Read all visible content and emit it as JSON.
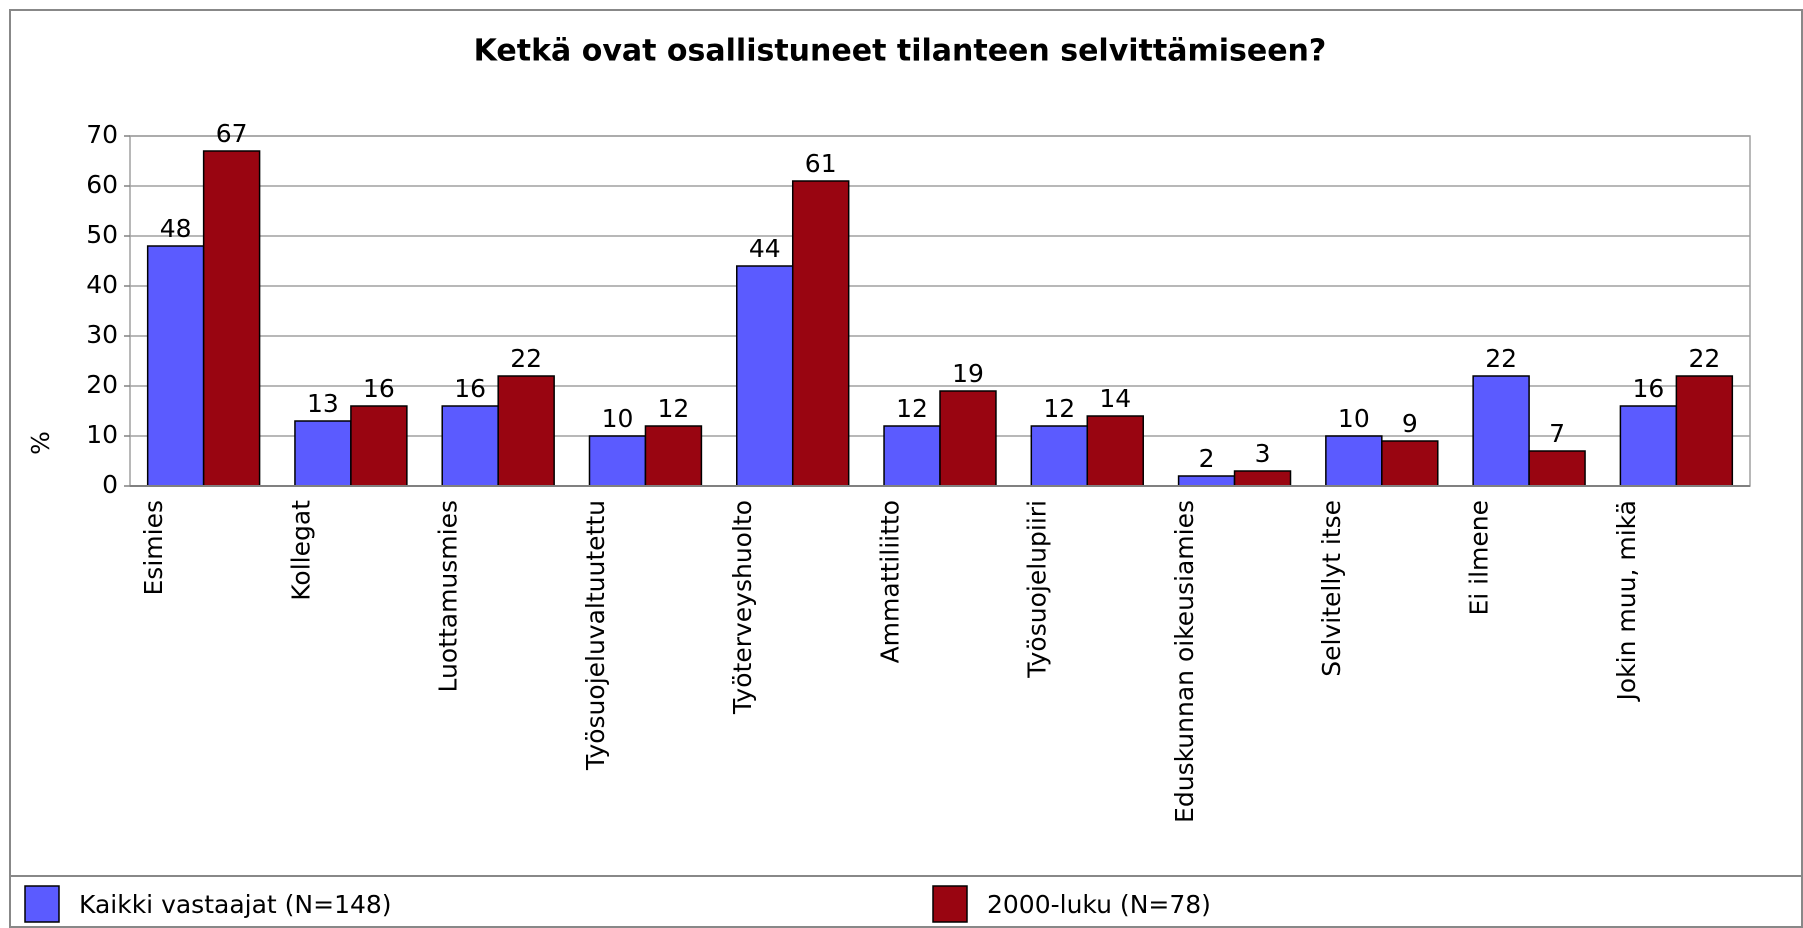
{
  "chart_data": {
    "type": "bar",
    "title": "Ketkä ovat osallistuneet tilanteen selvittämiseen?",
    "y_label": "%",
    "categories": [
      "Esimies",
      "Kollegat",
      "Luottamusmies",
      "Työsuojeluvaltuutettu",
      "Työterveyshuolto",
      "Ammattiliitto",
      "Työsuojelupiiri",
      "Eduskunnan oikeusiamies",
      "Selvitellyt itse",
      "Ei ilmene",
      "Jokin muu, mikä"
    ],
    "series": [
      {
        "name": "Kaikki vastaajat (N=148)",
        "color": "#5b5bff",
        "values": [
          48,
          13,
          16,
          10,
          44,
          12,
          12,
          2,
          10,
          22,
          16
        ]
      },
      {
        "name": "2000-luku (N=78)",
        "color": "#990511",
        "values": [
          67,
          16,
          22,
          12,
          61,
          19,
          14,
          3,
          9,
          7,
          22
        ]
      }
    ],
    "ylim": [
      0,
      70
    ],
    "yticks": [
      0,
      10,
      20,
      30,
      40,
      50,
      60,
      70
    ],
    "grid": true,
    "legend": "bottom"
  }
}
